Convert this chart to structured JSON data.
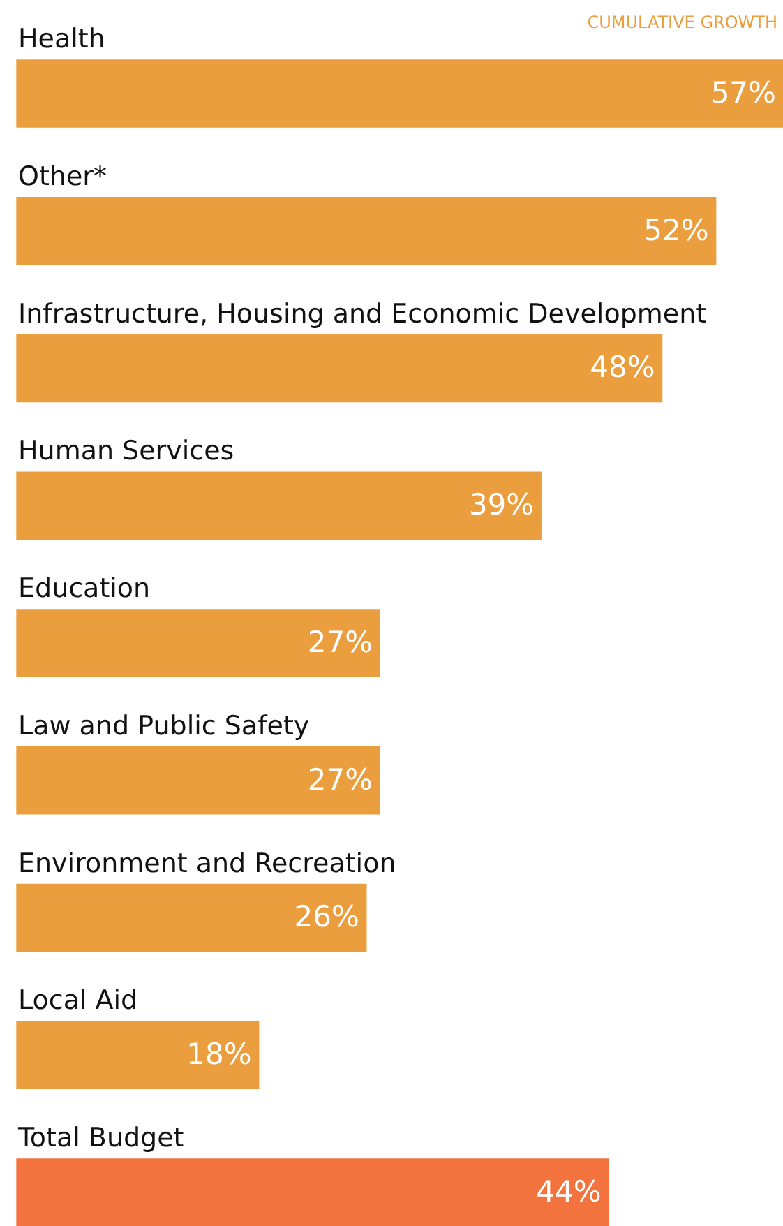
{
  "chart_data": {
    "type": "bar",
    "orientation": "horizontal",
    "title": "CUMULATIVE GROWTH",
    "categories": [
      "Health",
      "Other*",
      "Infrastructure, Housing and Economic Development",
      "Human Services",
      "Education",
      "Law and Public Safety",
      "Environment and Recreation",
      "Local Aid",
      "Total Budget"
    ],
    "values": [
      57,
      52,
      48,
      39,
      27,
      27,
      26,
      18,
      44
    ],
    "colors": [
      "#eb9e3e",
      "#eb9e3e",
      "#eb9e3e",
      "#eb9e3e",
      "#eb9e3e",
      "#eb9e3e",
      "#eb9e3e",
      "#eb9e3e",
      "#f2733d"
    ],
    "value_labels": [
      "57%",
      "52%",
      "48%",
      "39%",
      "27%",
      "27%",
      "26%",
      "18%",
      "44%"
    ],
    "tick_labels": false
  }
}
